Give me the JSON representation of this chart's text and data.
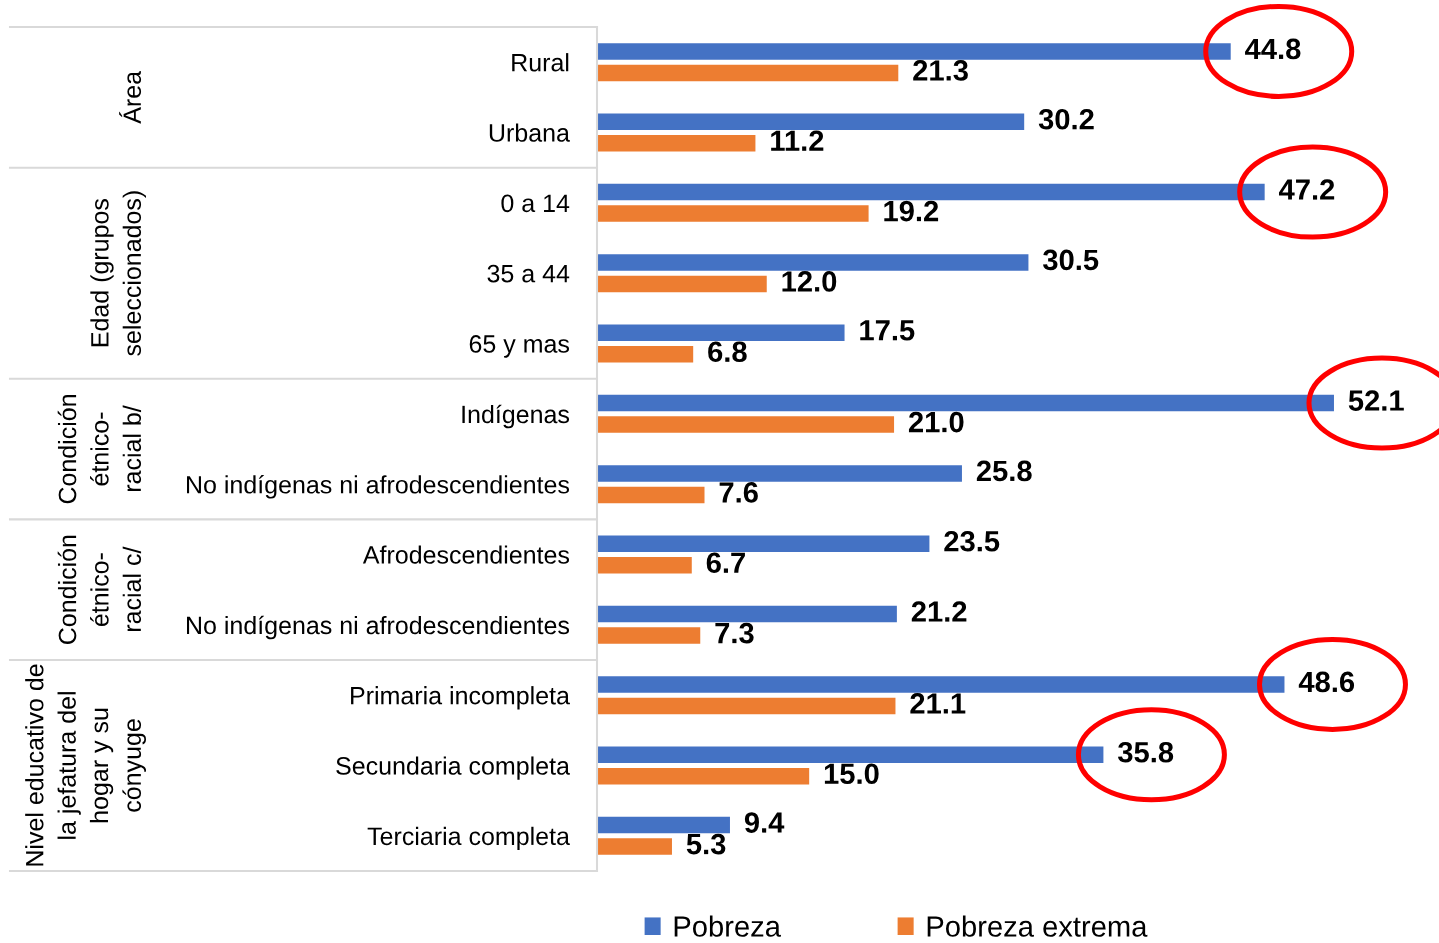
{
  "chart_data": {
    "type": "bar",
    "orientation": "horizontal",
    "categories": [
      "Rural",
      "Urbana",
      "0 a 14",
      "35 a 44",
      "65 y mas",
      "Indígenas",
      "No indígenas ni afrodescendientes",
      "Afrodescendientes",
      "No indígenas ni afrodescendientes",
      "Primaria incompleta",
      "Secundaria completa",
      "Terciaria completa"
    ],
    "series": [
      {
        "name": "Pobreza",
        "color": "#4472c4",
        "values": [
          44.8,
          30.2,
          47.2,
          30.5,
          17.5,
          52.1,
          25.8,
          23.5,
          21.2,
          48.6,
          35.8,
          9.4
        ],
        "value_labels": [
          "44.8",
          "30.2",
          "47.2",
          "30.5",
          "17.5",
          "52.1",
          "25.8",
          "23.5",
          "21.2",
          "48.6",
          "35.8",
          "9.4"
        ]
      },
      {
        "name": "Pobreza extrema",
        "color": "#ed7d31",
        "values": [
          21.3,
          11.2,
          19.2,
          12.0,
          6.8,
          21.0,
          7.6,
          6.7,
          7.3,
          21.1,
          15.0,
          5.3
        ],
        "value_labels": [
          "21.3",
          "11.2",
          "19.2",
          "12.0",
          "6.8",
          "21.0",
          "7.6",
          "6.7",
          "7.3",
          "21.1",
          "15.0",
          "5.3"
        ]
      }
    ],
    "legend": "bottom",
    "tick_labels": "y",
    "annotations": [
      "Área",
      "Edad (grupos\nseleccionados)",
      "Condición\nétnico-\nracial b/",
      "Condición\nétnico-\nracial c/",
      "Nivel educativo de\nla jefatura del\nhogar y su\ncónyuge"
    ]
  }
}
